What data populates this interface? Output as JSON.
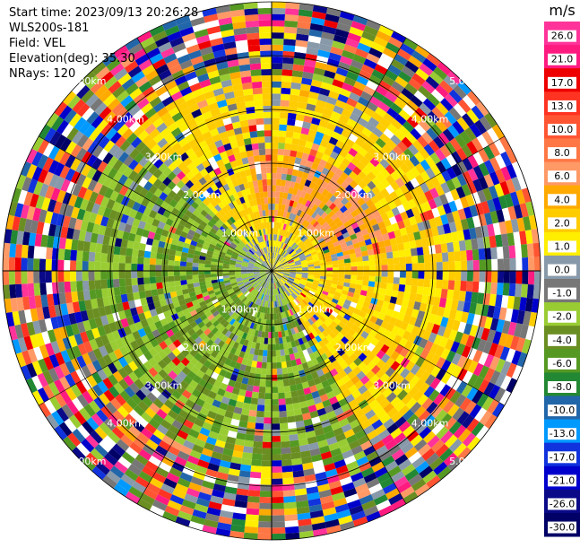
{
  "header": {
    "start_time": "Start time: 2023/09/13 20:26:28",
    "instrument": "WLS200s-181",
    "field": "Field: VEL",
    "elevation": "Elevation(deg): 35.30",
    "nrays": "NRays: 120"
  },
  "chart_data": {
    "type": "heatmap",
    "projection": "polar-ppi",
    "field": "VEL",
    "unit": "m/s",
    "n_rays": 120,
    "range_rings_km": [
      1.0,
      2.0,
      3.0,
      4.0,
      5.0
    ],
    "range_labels": [
      "1.00km",
      "2.00km",
      "3.00km",
      "4.00km",
      "5.00km"
    ],
    "max_range_km": 5.0,
    "colorbar": {
      "label": "m/s",
      "ticks": [
        "26.0",
        "21.0",
        "17.0",
        "13.0",
        "10.0",
        "8.0",
        "6.0",
        "4.0",
        "2.0",
        "1.0",
        "0.0",
        "-1.0",
        "-2.0",
        "-4.0",
        "-6.0",
        "-8.0",
        "-10.0",
        "-13.0",
        "-17.0",
        "-21.0",
        "-26.0",
        "-30.0"
      ],
      "colors": [
        "#ff3399",
        "#ff1a80",
        "#ee0000",
        "#ff3322",
        "#ff5533",
        "#ff7744",
        "#ff9966",
        "#ffaa00",
        "#ffcc00",
        "#ffee00",
        "#8899aa",
        "#777777",
        "#99cc33",
        "#6b8e23",
        "#559922",
        "#228833",
        "#2266aa",
        "#0099ff",
        "#1133dd",
        "#0000cc",
        "#0a0a88",
        "#000066"
      ]
    },
    "pattern": {
      "north": "positive (yellow/orange)",
      "east": "positive (yellow)",
      "south_west": "negative (green)",
      "outer_ring": "noise"
    }
  }
}
